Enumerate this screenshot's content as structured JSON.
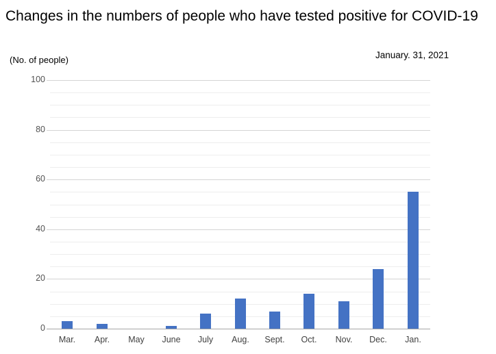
{
  "header": {
    "title": "Changes in the numbers of people who have tested positive for COVID-19",
    "date_annotation": "January. 31, 2021",
    "y_axis_unit": "(No. of people)"
  },
  "chart_data": {
    "type": "bar",
    "title": "Changes in the numbers of people who have tested positive for COVID-19",
    "subtitle": "January. 31, 2021",
    "categories": [
      "Mar.",
      "Apr.",
      "May",
      "June",
      "July",
      "Aug.",
      "Sept.",
      "Oct.",
      "Nov.",
      "Dec.",
      "Jan."
    ],
    "values": [
      3,
      2,
      0,
      1,
      6,
      12,
      7,
      14,
      11,
      24,
      55
    ],
    "xlabel": "",
    "ylabel": "(No. of people)",
    "ylim": [
      0,
      100
    ],
    "ytick_interval": 20,
    "minor_gridline_interval": 5,
    "yticks": [
      0,
      20,
      40,
      60,
      80,
      100
    ],
    "grid": true,
    "legend": "none",
    "bar_color": "#4472C4",
    "major_gridline_color": "#d4d4d4",
    "minor_gridline_color": "#ededed",
    "axis_line_color": "#a6a6a6"
  }
}
